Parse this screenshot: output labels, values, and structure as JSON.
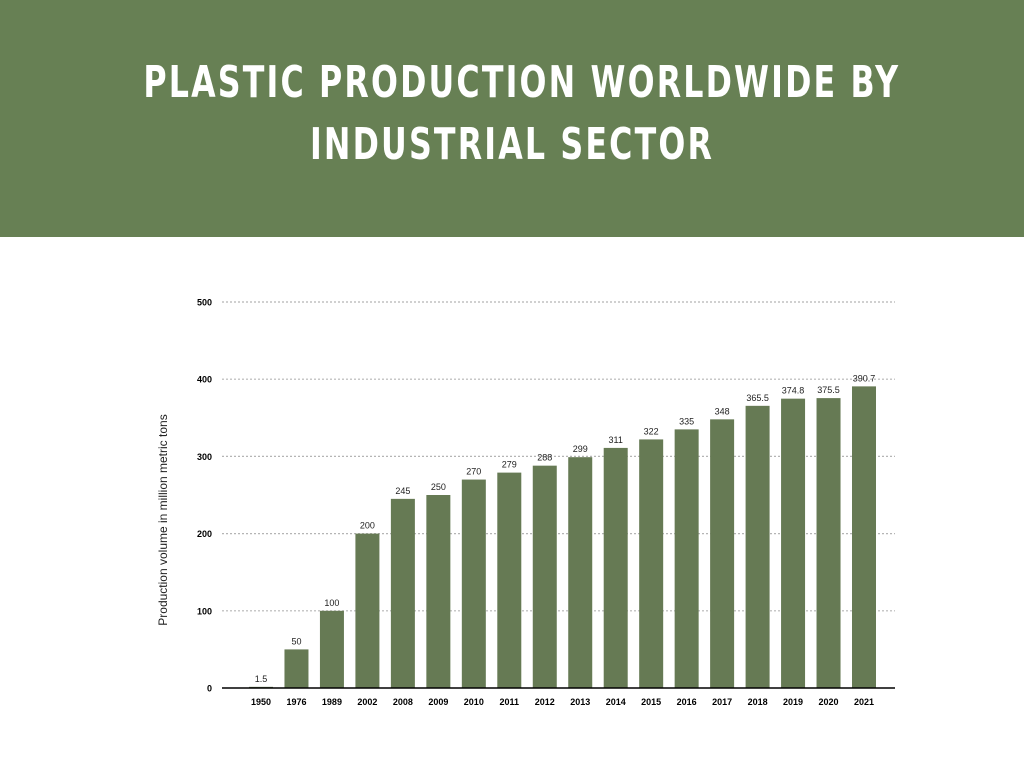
{
  "header": {
    "title_line1": "PLASTIC PRODUCTION WORLDWIDE BY",
    "title_line2": "INDUSTRIAL SECTOR"
  },
  "colors": {
    "banner": "#678054",
    "bar": "#667a54",
    "grid": "#b5b5b5",
    "axis": "#000000"
  },
  "chart_data": {
    "type": "bar",
    "title": "PLASTIC PRODUCTION WORLDWIDE BY INDUSTRIAL SECTOR",
    "ylabel": "Production volume in million metric tons",
    "xlabel": "",
    "categories": [
      "1950",
      "1976",
      "1989",
      "2002",
      "2008",
      "2009",
      "2010",
      "2011",
      "2012",
      "2013",
      "2014",
      "2015",
      "2016",
      "2017",
      "2018",
      "2019",
      "2020",
      "2021"
    ],
    "values": [
      1.5,
      50,
      100,
      200,
      245,
      250,
      270,
      279,
      288,
      299,
      311,
      322,
      335,
      348,
      365.5,
      374.8,
      375.5,
      390.7
    ],
    "value_labels": [
      "1.5",
      "50",
      "100",
      "200",
      "245",
      "250",
      "270",
      "279",
      "288",
      "299",
      "311",
      "322",
      "335",
      "348",
      "365.5",
      "374.8",
      "375.5",
      "390.7"
    ],
    "yticks": [
      0,
      100,
      200,
      300,
      400,
      500
    ],
    "ylim": [
      0,
      500
    ],
    "grid": true,
    "grid_style": "dotted",
    "legend": "none"
  }
}
